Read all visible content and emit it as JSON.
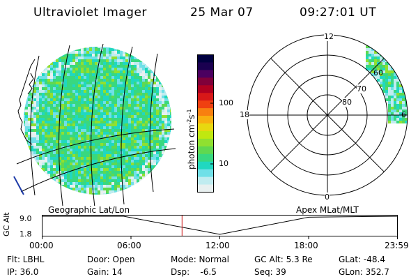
{
  "header": {
    "instrument": "Ultraviolet Imager",
    "date": "25 Mar 07",
    "time": "09:27:01 UT"
  },
  "colorbar": {
    "unit_label": "photon cm",
    "unit_exp1": "-2",
    "unit_mid": "s",
    "unit_exp2": "-1",
    "tick_high": "100",
    "tick_low": "10",
    "colors": [
      "#000040",
      "#1a0050",
      "#4b0060",
      "#80003a",
      "#b00020",
      "#d81818",
      "#f04010",
      "#f88010",
      "#f8b010",
      "#e8d810",
      "#c0e810",
      "#90e030",
      "#60d850",
      "#38d880",
      "#20d8c0",
      "#70e0e8",
      "#c0ecf0",
      "#e8f0f0"
    ]
  },
  "polar": {
    "mlt_top": "12",
    "mlt_left": "18",
    "mlt_right": "6",
    "mlt_bottom": "0",
    "lat_60": "60",
    "lat_70": "70",
    "lat_80": "80"
  },
  "labels": {
    "geo": "Geographic Lat/Lon",
    "apex": "Apex MLat/MLT"
  },
  "altplot": {
    "axis_label": "GC Alt",
    "ymax": "9.0",
    "ymin": "1.8",
    "xticks": [
      "00:00",
      "06:00",
      "12:00",
      "18:00",
      "23:59"
    ],
    "current_hour": 9.45,
    "profile": [
      {
        "t": 0,
        "alt": 9.0
      },
      {
        "t": 5.5,
        "alt": 9.0
      },
      {
        "t": 12,
        "alt": 1.8
      },
      {
        "t": 18,
        "alt": 8.6
      },
      {
        "t": 24,
        "alt": 9.0
      }
    ]
  },
  "info": {
    "flt": "Flt: LBHL",
    "door": "Door: Open",
    "mode": "Mode: Normal",
    "gcalt": "GC Alt: 5.3 Re",
    "glat": "GLat: -48.4",
    "ip": "IP: 36.0",
    "gain": "Gain: 14",
    "dsp": "Dsp:    -6.5",
    "seq": "Seq: 39",
    "glon": "GLon: 352.7"
  }
}
